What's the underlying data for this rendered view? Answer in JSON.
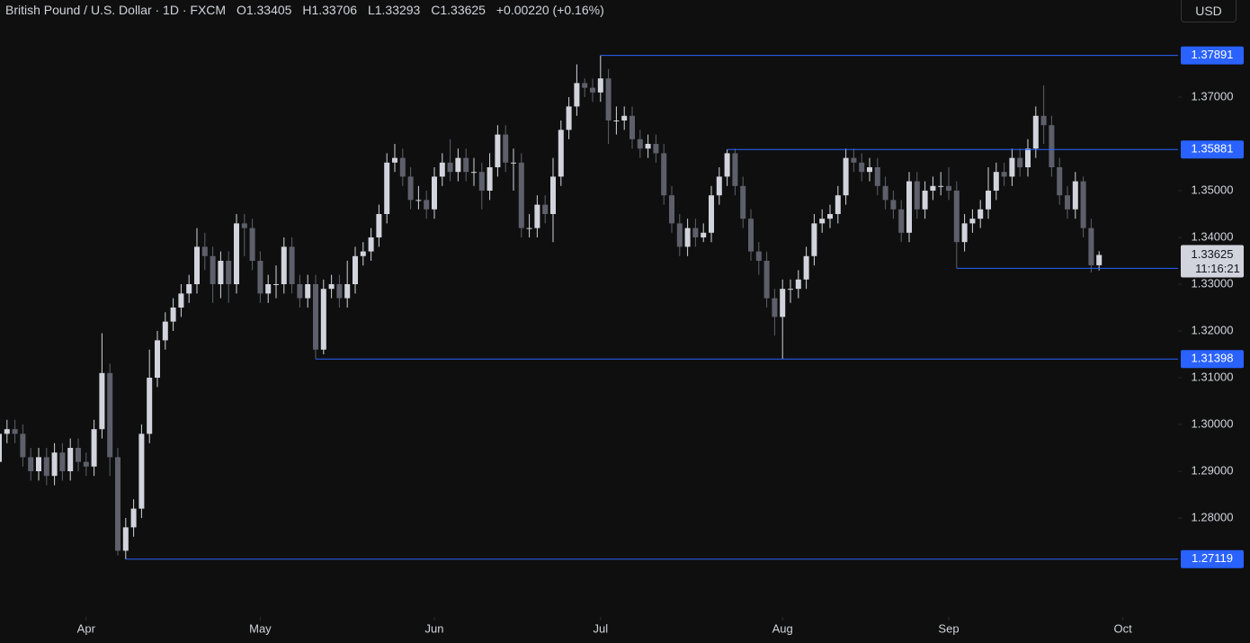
{
  "header": {
    "title": "British Pound / U.S. Dollar · 1D · FXCM",
    "open": "O1.33405",
    "high": "H1.33706",
    "low": "L1.33293",
    "close": "C1.33625",
    "change": "+0.00220 (+0.16%)",
    "currency_button": "USD"
  },
  "chart_data": {
    "type": "candlestick",
    "categories": [
      null,
      null,
      null,
      null,
      null,
      null,
      null,
      null,
      null,
      null,
      null,
      null,
      null,
      null,
      null,
      null,
      null,
      null,
      null,
      null,
      null,
      null,
      null,
      null,
      null,
      null,
      null,
      null,
      null,
      null,
      null,
      null,
      null,
      null,
      null,
      null,
      null,
      null,
      null,
      null,
      null,
      null,
      null,
      null,
      null,
      null,
      null,
      null,
      null,
      null,
      null,
      null,
      null,
      null,
      null,
      null,
      null,
      null,
      null,
      null,
      null,
      null,
      null,
      null,
      null,
      null,
      null,
      null,
      null,
      null,
      null,
      null,
      null,
      null,
      null,
      null,
      null,
      null,
      null,
      null,
      null,
      null,
      null,
      null,
      null,
      null,
      null,
      null,
      null,
      null,
      null,
      null,
      null,
      null,
      null,
      null,
      null,
      null,
      null,
      null,
      null,
      null,
      null,
      null,
      null,
      null,
      null,
      null,
      null,
      null,
      null,
      null,
      null,
      null,
      null,
      null,
      null,
      null,
      null,
      null,
      null,
      null,
      null,
      null,
      null,
      null,
      null,
      null,
      null,
      null,
      null,
      null,
      null,
      null,
      null,
      null,
      null,
      null,
      null,
      null
    ],
    "open": [
      1.292,
      1.298,
      1.299,
      1.298,
      1.293,
      1.29,
      1.293,
      1.289,
      1.294,
      1.29,
      1.295,
      1.292,
      1.291,
      1.299,
      1.311,
      1.293,
      1.273,
      1.278,
      1.282,
      1.298,
      1.31,
      1.318,
      1.322,
      1.325,
      1.328,
      1.33,
      1.338,
      1.336,
      1.33,
      1.335,
      1.33,
      1.343,
      1.342,
      1.335,
      1.328,
      1.33,
      1.33,
      1.338,
      1.33,
      1.327,
      1.33,
      1.316,
      1.329,
      1.33,
      1.327,
      1.33,
      1.336,
      1.337,
      1.34,
      1.345,
      1.356,
      1.357,
      1.353,
      1.348,
      1.348,
      1.346,
      1.353,
      1.356,
      1.354,
      1.357,
      1.354,
      1.354,
      1.35,
      1.355,
      1.362,
      1.356,
      1.356,
      1.342,
      1.342,
      1.347,
      1.345,
      1.353,
      1.363,
      1.368,
      1.373,
      1.372,
      1.371,
      1.374,
      1.365,
      1.365,
      1.366,
      1.361,
      1.359,
      1.36,
      1.358,
      1.349,
      1.343,
      1.338,
      1.342,
      1.34,
      1.341,
      1.349,
      1.353,
      1.358,
      1.351,
      1.344,
      1.337,
      1.335,
      1.327,
      1.323,
      1.329,
      1.329,
      1.331,
      1.336,
      1.343,
      1.344,
      1.345,
      1.349,
      1.357,
      1.356,
      1.354,
      1.355,
      1.351,
      1.348,
      1.346,
      1.341,
      1.352,
      1.346,
      1.35,
      1.351,
      1.351,
      1.35,
      1.339,
      1.343,
      1.344,
      1.346,
      1.35,
      1.354,
      1.353,
      1.357,
      1.355,
      1.359,
      1.366,
      1.364,
      1.355,
      1.349,
      1.346,
      1.352,
      1.342,
      1.33405
    ],
    "high": [
      1.3,
      1.301,
      1.301,
      1.3,
      1.295,
      1.295,
      1.295,
      1.296,
      1.296,
      1.297,
      1.297,
      1.294,
      1.301,
      1.3195,
      1.313,
      1.295,
      1.28,
      1.284,
      1.3,
      1.316,
      1.32,
      1.324,
      1.327,
      1.33,
      1.332,
      1.342,
      1.341,
      1.338,
      1.337,
      1.337,
      1.345,
      1.345,
      1.344,
      1.337,
      1.332,
      1.334,
      1.34,
      1.34,
      1.332,
      1.332,
      1.332,
      1.331,
      1.332,
      1.332,
      1.335,
      1.338,
      1.339,
      1.342,
      1.347,
      1.358,
      1.36,
      1.359,
      1.355,
      1.351,
      1.35,
      1.355,
      1.358,
      1.361,
      1.359,
      1.359,
      1.357,
      1.356,
      1.358,
      1.364,
      1.364,
      1.359,
      1.358,
      1.345,
      1.349,
      1.349,
      1.357,
      1.365,
      1.37,
      1.377,
      1.374,
      1.374,
      1.37891,
      1.376,
      1.368,
      1.368,
      1.368,
      1.363,
      1.362,
      1.362,
      1.36,
      1.351,
      1.345,
      1.344,
      1.344,
      1.343,
      1.351,
      1.355,
      1.35881,
      1.359,
      1.353,
      1.346,
      1.339,
      1.337,
      1.329,
      1.331,
      1.331,
      1.333,
      1.338,
      1.345,
      1.346,
      1.347,
      1.351,
      1.359,
      1.359,
      1.358,
      1.357,
      1.357,
      1.353,
      1.35,
      1.348,
      1.354,
      1.354,
      1.352,
      1.353,
      1.354,
      1.355,
      1.352,
      1.345,
      1.346,
      1.348,
      1.355,
      1.356,
      1.356,
      1.359,
      1.359,
      1.361,
      1.368,
      1.3725,
      1.366,
      1.357,
      1.351,
      1.354,
      1.353,
      1.344,
      1.33706
    ],
    "low": [
      1.29,
      1.296,
      1.296,
      1.291,
      1.288,
      1.288,
      1.287,
      1.287,
      1.288,
      1.288,
      1.29,
      1.289,
      1.289,
      1.297,
      1.289,
      1.272,
      1.27119,
      1.276,
      1.28,
      1.296,
      1.308,
      1.316,
      1.32,
      1.323,
      1.326,
      1.328,
      1.333,
      1.326,
      1.327,
      1.326,
      1.328,
      1.336,
      1.333,
      1.326,
      1.326,
      1.327,
      1.328,
      1.328,
      1.325,
      1.325,
      1.31398,
      1.315,
      1.327,
      1.325,
      1.325,
      1.328,
      1.334,
      1.335,
      1.338,
      1.343,
      1.354,
      1.351,
      1.346,
      1.346,
      1.344,
      1.344,
      1.351,
      1.352,
      1.352,
      1.352,
      1.351,
      1.346,
      1.348,
      1.353,
      1.354,
      1.35,
      1.34,
      1.34,
      1.34,
      1.343,
      1.339,
      1.351,
      1.361,
      1.366,
      1.37,
      1.369,
      1.369,
      1.36,
      1.362,
      1.363,
      1.359,
      1.357,
      1.357,
      1.356,
      1.347,
      1.341,
      1.336,
      1.336,
      1.338,
      1.339,
      1.339,
      1.347,
      1.351,
      1.349,
      1.342,
      1.335,
      1.332,
      1.325,
      1.319,
      1.314,
      1.326,
      1.327,
      1.329,
      1.334,
      1.341,
      1.342,
      1.343,
      1.347,
      1.354,
      1.352,
      1.352,
      1.349,
      1.346,
      1.344,
      1.339,
      1.339,
      1.344,
      1.344,
      1.348,
      1.349,
      1.348,
      1.3334,
      1.337,
      1.341,
      1.342,
      1.344,
      1.348,
      1.351,
      1.351,
      1.353,
      1.353,
      1.357,
      1.36,
      1.353,
      1.347,
      1.344,
      1.344,
      1.34,
      1.3325,
      1.33293
    ],
    "close": [
      1.298,
      1.299,
      1.298,
      1.293,
      1.29,
      1.293,
      1.289,
      1.294,
      1.29,
      1.295,
      1.292,
      1.291,
      1.299,
      1.311,
      1.293,
      1.273,
      1.278,
      1.282,
      1.298,
      1.31,
      1.318,
      1.322,
      1.325,
      1.328,
      1.33,
      1.338,
      1.336,
      1.33,
      1.335,
      1.33,
      1.343,
      1.342,
      1.335,
      1.328,
      1.33,
      1.33,
      1.338,
      1.33,
      1.327,
      1.33,
      1.316,
      1.329,
      1.33,
      1.327,
      1.33,
      1.336,
      1.337,
      1.34,
      1.345,
      1.356,
      1.357,
      1.353,
      1.348,
      1.348,
      1.346,
      1.353,
      1.356,
      1.354,
      1.357,
      1.354,
      1.354,
      1.35,
      1.355,
      1.362,
      1.356,
      1.356,
      1.342,
      1.342,
      1.347,
      1.345,
      1.353,
      1.363,
      1.368,
      1.373,
      1.372,
      1.371,
      1.374,
      1.365,
      1.365,
      1.366,
      1.361,
      1.359,
      1.36,
      1.358,
      1.349,
      1.343,
      1.338,
      1.342,
      1.34,
      1.341,
      1.349,
      1.353,
      1.358,
      1.351,
      1.344,
      1.337,
      1.335,
      1.327,
      1.323,
      1.329,
      1.329,
      1.331,
      1.336,
      1.343,
      1.344,
      1.345,
      1.349,
      1.357,
      1.356,
      1.354,
      1.355,
      1.351,
      1.348,
      1.346,
      1.341,
      1.352,
      1.346,
      1.35,
      1.351,
      1.351,
      1.35,
      1.339,
      1.343,
      1.344,
      1.346,
      1.35,
      1.354,
      1.353,
      1.357,
      1.355,
      1.359,
      1.366,
      1.364,
      1.355,
      1.349,
      1.346,
      1.352,
      1.342,
      1.33405,
      1.33625
    ],
    "up_color": "#d1d4dc",
    "down_color": "#5d606b",
    "ylim": [
      1.26,
      1.38
    ],
    "yticks": [
      {
        "value": 1.28,
        "label": "1.28000"
      },
      {
        "value": 1.29,
        "label": "1.29000"
      },
      {
        "value": 1.3,
        "label": "1.30000"
      },
      {
        "value": 1.31,
        "label": "1.31000"
      },
      {
        "value": 1.32,
        "label": "1.32000"
      },
      {
        "value": 1.33,
        "label": "1.33000"
      },
      {
        "value": 1.34,
        "label": "1.34000"
      },
      {
        "value": 1.35,
        "label": "1.35000"
      },
      {
        "value": 1.37,
        "label": "1.37000"
      }
    ],
    "xticks": [
      {
        "value": 11,
        "label": "Apr"
      },
      {
        "value": 33,
        "label": "May"
      },
      {
        "value": 55,
        "label": "Jun"
      },
      {
        "value": 76,
        "label": "Jul"
      },
      {
        "value": 99,
        "label": "Aug"
      },
      {
        "value": 120,
        "label": "Sep"
      },
      {
        "value": 142,
        "label": "Oct"
      }
    ],
    "levels": [
      {
        "value": 1.37891,
        "start": 76
      },
      {
        "value": 1.35881,
        "start": 92
      },
      {
        "value": 1.3334,
        "start": 121
      },
      {
        "value": 1.31398,
        "start": 40
      },
      {
        "value": 1.27119,
        "start": 16
      }
    ],
    "level_color": "#2962ff",
    "countdown": "11:16:21"
  }
}
